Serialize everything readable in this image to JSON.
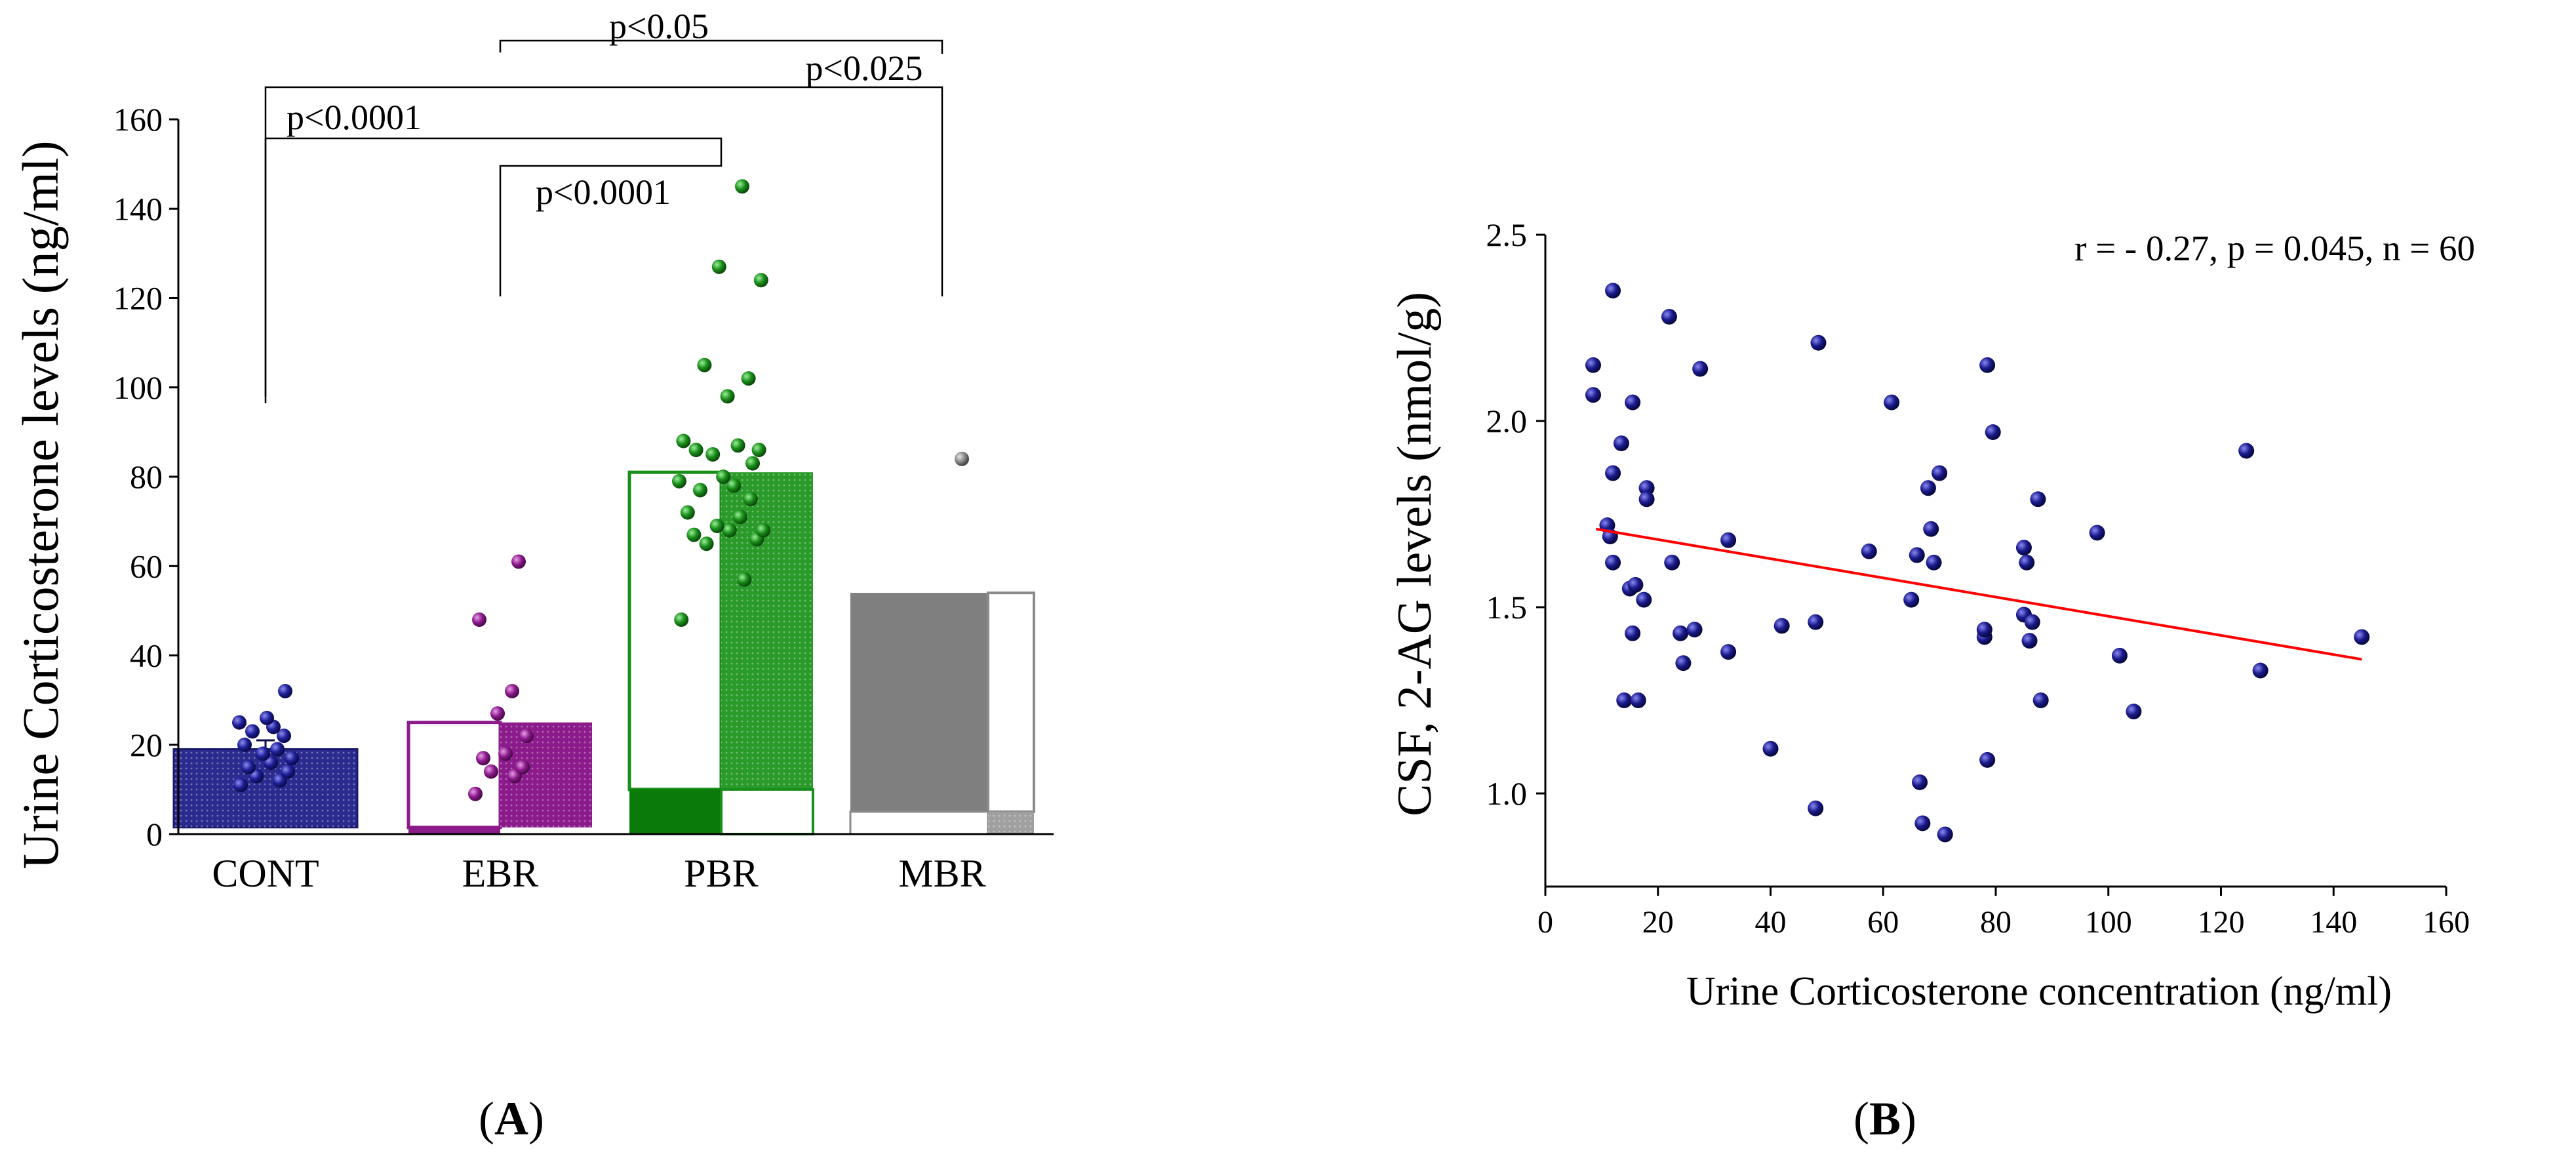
{
  "chart_data": [
    {
      "panel": "A",
      "type": "bar",
      "ylabel": "Urine Corticosterone levels (ng/ml)",
      "xlabel": "",
      "ylim": [
        0,
        160
      ],
      "yticks": [
        0,
        20,
        40,
        60,
        80,
        100,
        120,
        140,
        160
      ],
      "categories": [
        "CONT",
        "EBR",
        "PBR",
        "MBR"
      ],
      "values": [
        19,
        25,
        81,
        54
      ],
      "colors": [
        "#2b2b8f",
        "#8b1a8b",
        "#2a9a2a",
        "#7f7f7f"
      ],
      "points": [
        [
          11,
          12,
          13,
          14,
          15,
          16,
          17,
          18,
          19,
          20,
          22,
          23,
          24,
          25,
          26,
          32
        ],
        [
          9,
          13,
          14,
          15,
          17,
          18,
          22,
          27,
          32,
          48,
          61
        ],
        [
          48,
          57,
          65,
          66,
          67,
          68,
          68,
          69,
          71,
          72,
          75,
          77,
          78,
          79,
          80,
          83,
          85,
          86,
          86,
          87,
          88,
          98,
          102,
          105,
          124,
          127,
          145
        ],
        [
          84
        ]
      ],
      "comparisons": [
        {
          "from": "EBR",
          "to": "MBR",
          "label": "p<0.05"
        },
        {
          "from": "CONT",
          "to": "MBR",
          "label": "p<0.025"
        },
        {
          "from": "CONT",
          "to": "PBR",
          "label": "p<0.0001"
        },
        {
          "from": "EBR",
          "to": "PBR",
          "label": "p<0.0001"
        }
      ]
    },
    {
      "panel": "B",
      "type": "scatter",
      "xlabel": "Urine Corticosterone concentration (ng/ml)",
      "ylabel": "CSF, 2-AG levels (nmol/g)",
      "xlim": [
        0,
        160
      ],
      "ylim": [
        0.75,
        2.5
      ],
      "xticks": [
        0,
        20,
        40,
        60,
        80,
        100,
        120,
        140,
        160
      ],
      "yticks": [
        1.0,
        1.5,
        2.0,
        2.5
      ],
      "annotation": "r = - 0.27, p = 0.045, n = 60",
      "marker_color": "#1a1a8c",
      "trendline": {
        "x": [
          9,
          145
        ],
        "y": [
          1.71,
          1.36
        ],
        "color": "#ff0000"
      },
      "points": [
        [
          8.5,
          2.15
        ],
        [
          8.5,
          2.07
        ],
        [
          11,
          1.72
        ],
        [
          11.5,
          1.69
        ],
        [
          12,
          2.35
        ],
        [
          12,
          1.86
        ],
        [
          12,
          1.62
        ],
        [
          13.5,
          1.94
        ],
        [
          14,
          1.25
        ],
        [
          15,
          1.55
        ],
        [
          15.5,
          2.05
        ],
        [
          15.5,
          1.43
        ],
        [
          16,
          1.56
        ],
        [
          16.5,
          1.25
        ],
        [
          17.5,
          1.52
        ],
        [
          18,
          1.82
        ],
        [
          18,
          1.79
        ],
        [
          22,
          2.28
        ],
        [
          22.5,
          1.62
        ],
        [
          24,
          1.43
        ],
        [
          24.5,
          1.35
        ],
        [
          26.5,
          1.44
        ],
        [
          27.5,
          2.14
        ],
        [
          32.5,
          1.38
        ],
        [
          32.5,
          1.68
        ],
        [
          40,
          1.12
        ],
        [
          42,
          1.45
        ],
        [
          48,
          1.46
        ],
        [
          48,
          0.96
        ],
        [
          48.5,
          2.21
        ],
        [
          57.5,
          1.65
        ],
        [
          61.5,
          2.05
        ],
        [
          65,
          1.52
        ],
        [
          66,
          1.64
        ],
        [
          66.5,
          1.03
        ],
        [
          67,
          0.92
        ],
        [
          68,
          1.82
        ],
        [
          68.5,
          1.71
        ],
        [
          69,
          1.62
        ],
        [
          70,
          1.86
        ],
        [
          71,
          0.89
        ],
        [
          78,
          1.42
        ],
        [
          78,
          1.44
        ],
        [
          78.5,
          2.15
        ],
        [
          78.5,
          1.09
        ],
        [
          79.5,
          1.97
        ],
        [
          85,
          1.66
        ],
        [
          85,
          1.48
        ],
        [
          85.5,
          1.62
        ],
        [
          86,
          1.41
        ],
        [
          86.5,
          1.46
        ],
        [
          87.5,
          1.79
        ],
        [
          88,
          1.25
        ],
        [
          98,
          1.7
        ],
        [
          102,
          1.37
        ],
        [
          104.5,
          1.22
        ],
        [
          124.5,
          1.92
        ],
        [
          127,
          1.33
        ],
        [
          145,
          1.42
        ]
      ]
    }
  ],
  "labels": {
    "panel_a_open": "(",
    "panel_a_letter": "A",
    "panel_a_close": ")",
    "panel_b_open": "(",
    "panel_b_letter": "B",
    "panel_b_close": ")"
  }
}
